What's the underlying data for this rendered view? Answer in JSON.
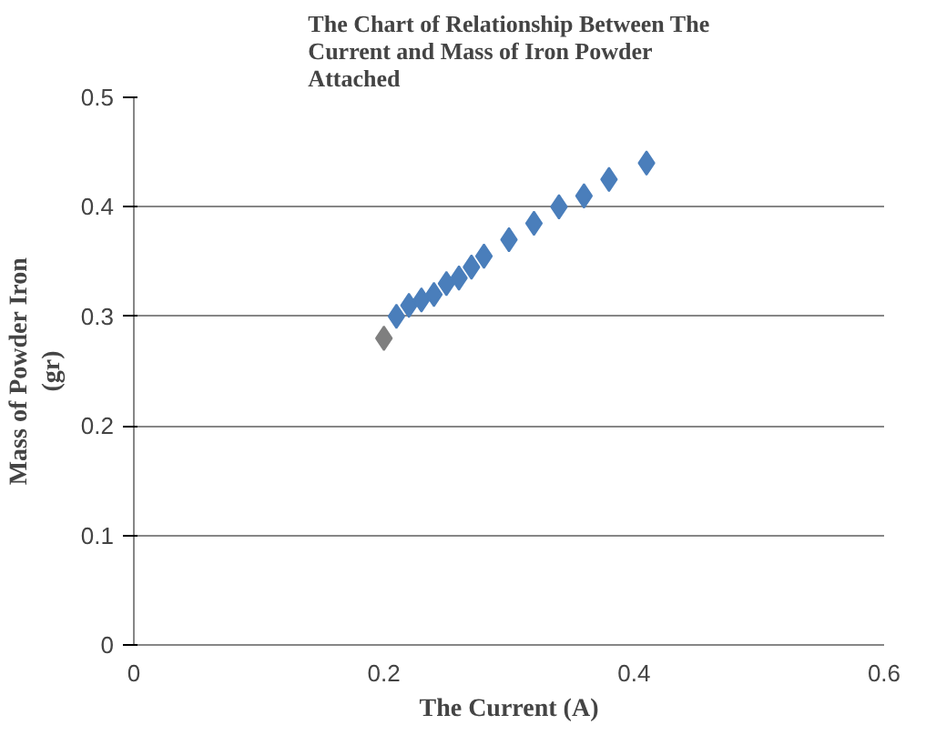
{
  "chart_data": {
    "type": "scatter",
    "title": "The Chart of Relationship Between The\nCurrent and Mass of Iron Powder\nAttached",
    "xlabel": "The Current (A)",
    "ylabel": "Mass of Powder Iron\n(gr)",
    "x": [
      0.2,
      0.21,
      0.22,
      0.23,
      0.24,
      0.25,
      0.26,
      0.27,
      0.28,
      0.3,
      0.32,
      0.34,
      0.36,
      0.38,
      0.41
    ],
    "values": [
      0.28,
      0.3,
      0.31,
      0.315,
      0.32,
      0.33,
      0.335,
      0.345,
      0.355,
      0.37,
      0.385,
      0.4,
      0.41,
      0.425,
      0.44
    ],
    "colors": [
      "#7f7f7f",
      "#4a7ebb",
      "#4a7ebb",
      "#4a7ebb",
      "#4a7ebb",
      "#4a7ebb",
      "#4a7ebb",
      "#4a7ebb",
      "#4a7ebb",
      "#4a7ebb",
      "#4a7ebb",
      "#4a7ebb",
      "#4a7ebb",
      "#4a7ebb",
      "#4a7ebb"
    ],
    "xlim": [
      0,
      0.6
    ],
    "xticks": [
      0,
      0.2,
      0.4,
      0.6
    ],
    "ylim": [
      0,
      0.5
    ],
    "yticks": [
      0,
      0.1,
      0.2,
      0.3,
      0.4,
      0.5
    ],
    "grid": "y",
    "marker": "diamond"
  }
}
